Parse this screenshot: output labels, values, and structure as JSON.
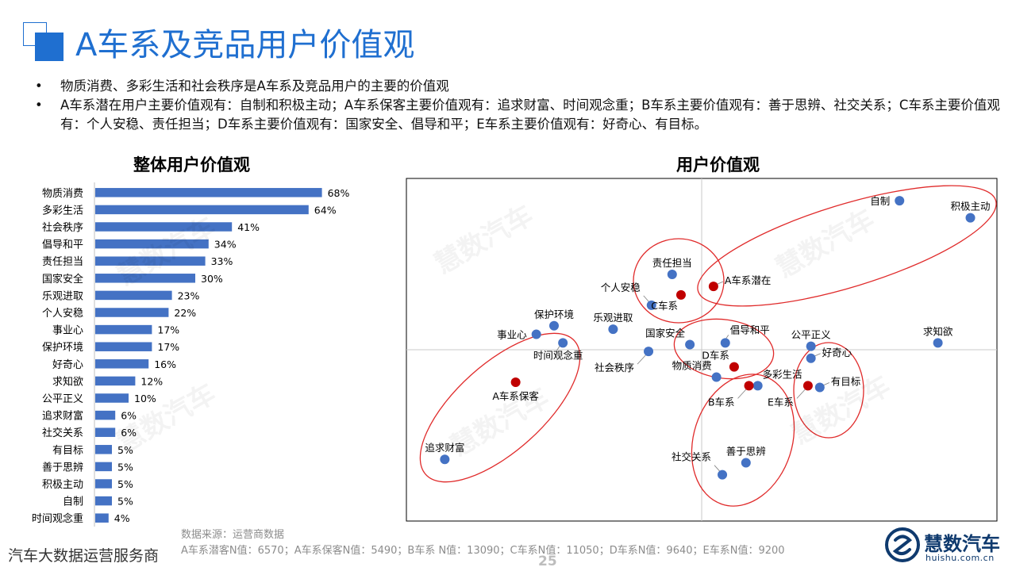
{
  "header": {
    "title": "A车系及竞品用户价值观"
  },
  "bullets": [
    "物质消费、多彩生活和社会秩序是A车系及竞品用户的主要的价值观",
    "A车系潜在用户主要价值观有：自制和积极主动；A车系保客主要价值观有：追求财富、时间观念重；B车系主要价值观有：善于思辨、社交关系；C车系主要价值观有：个人安稳、责任担当；D车系主要价值观有：国家安全、倡导和平；E车系主要价值观有：好奇心、有目标。"
  ],
  "chart_data": [
    {
      "type": "bar",
      "orientation": "horizontal",
      "title": "整体用户价值观",
      "categories": [
        "物质消费",
        "多彩生活",
        "社会秩序",
        "倡导和平",
        "责任担当",
        "国家安全",
        "乐观进取",
        "个人安稳",
        "事业心",
        "保护环境",
        "好奇心",
        "求知欲",
        "公平正义",
        "追求财富",
        "社交关系",
        "有目标",
        "善于思辨",
        "积极主动",
        "自制",
        "时间观念重"
      ],
      "values": [
        68,
        64,
        41,
        34,
        33,
        30,
        23,
        22,
        17,
        17,
        16,
        12,
        10,
        6,
        6,
        5,
        5,
        5,
        5,
        4
      ],
      "value_labels": [
        "68%",
        "64%",
        "41%",
        "34%",
        "33%",
        "30%",
        "23%",
        "22%",
        "17%",
        "17%",
        "16%",
        "12%",
        "10%",
        "6%",
        "6%",
        "5%",
        "5%",
        "5%",
        "5%",
        "4%"
      ],
      "unit": "%",
      "xlim": [
        0,
        100
      ],
      "bar_color": "#4472c4"
    },
    {
      "type": "scatter",
      "title": "用户价值观",
      "xlim": [
        -10,
        10
      ],
      "ylim": [
        -10,
        10
      ],
      "axes_cross_at_origin": true,
      "value_points": [
        {
          "label": "自制",
          "x": 6.7,
          "y": 8.7,
          "label_pos": "left"
        },
        {
          "label": "积极主动",
          "x": 9.1,
          "y": 7.7,
          "label_pos": "above"
        },
        {
          "label": "责任担当",
          "x": -1.0,
          "y": 4.4,
          "label_pos": "above"
        },
        {
          "label": "个人安稳",
          "x": -1.7,
          "y": 2.6,
          "label_pos": "above-left-leader"
        },
        {
          "label": "保护环境",
          "x": -5.0,
          "y": 1.4,
          "label_pos": "above"
        },
        {
          "label": "事业心",
          "x": -5.6,
          "y": 0.9,
          "label_pos": "left"
        },
        {
          "label": "乐观进取",
          "x": -3.0,
          "y": 1.2,
          "label_pos": "above"
        },
        {
          "label": "时间观念重",
          "x": -4.7,
          "y": 0.4,
          "label_pos": "below-leader"
        },
        {
          "label": "社会秩序",
          "x": -1.8,
          "y": -0.1,
          "label_pos": "below-left-leader"
        },
        {
          "label": "国家安全",
          "x": -0.4,
          "y": 0.3,
          "label_pos": "above-left"
        },
        {
          "label": "倡导和平",
          "x": 0.8,
          "y": 0.4,
          "label_pos": "above-right-leader"
        },
        {
          "label": "物质消费",
          "x": 0.5,
          "y": -1.6,
          "label_pos": "above-left"
        },
        {
          "label": "多彩生活",
          "x": 1.9,
          "y": -2.1,
          "label_pos": "above-right"
        },
        {
          "label": "善于思辨",
          "x": 1.5,
          "y": -6.6,
          "label_pos": "above"
        },
        {
          "label": "社交关系",
          "x": 0.7,
          "y": -7.3,
          "label_pos": "above-left-leader"
        },
        {
          "label": "公平正义",
          "x": 3.7,
          "y": 0.2,
          "label_pos": "above"
        },
        {
          "label": "好奇心",
          "x": 3.7,
          "y": -0.5,
          "label_pos": "right-leader"
        },
        {
          "label": "有目标",
          "x": 4.0,
          "y": -2.2,
          "label_pos": "right-leader"
        },
        {
          "label": "求知欲",
          "x": 8.0,
          "y": 0.4,
          "label_pos": "above"
        },
        {
          "label": "追求财富",
          "x": -8.7,
          "y": -6.4,
          "label_pos": "above"
        }
      ],
      "segment_points": [
        {
          "label": "A车系潜在",
          "x": 0.4,
          "y": 3.7,
          "label_pos": "right-leader"
        },
        {
          "label": "A车系保客",
          "x": -6.3,
          "y": -1.9,
          "label_pos": "below"
        },
        {
          "label": "B车系",
          "x": 1.6,
          "y": -2.1,
          "label_pos": "below-left-leader"
        },
        {
          "label": "C车系",
          "x": -0.7,
          "y": 3.2,
          "label_pos": "below-left"
        },
        {
          "label": "D车系",
          "x": 1.1,
          "y": -1.0,
          "label_pos": "above-left"
        },
        {
          "label": "E车系",
          "x": 3.6,
          "y": -2.1,
          "label_pos": "below-left-leader"
        }
      ],
      "value_color": "#4472c4",
      "segment_color": "#c00000"
    }
  ],
  "watermark_text": "慧数汽车",
  "footnote": {
    "source": "数据来源：运营商数据",
    "sample": "A车系潜客N值：6570；A车系保客N值：5490；B车系 N值：13090；C车系N值：11050；D车系N值：9640；E车系N值：9200"
  },
  "footer": {
    "left_text": "汽车大数据运营服务商",
    "page_number": "25"
  },
  "logo": {
    "name": "慧数汽车",
    "url": "huishu.com.cn",
    "color": "#0f3a6e"
  }
}
